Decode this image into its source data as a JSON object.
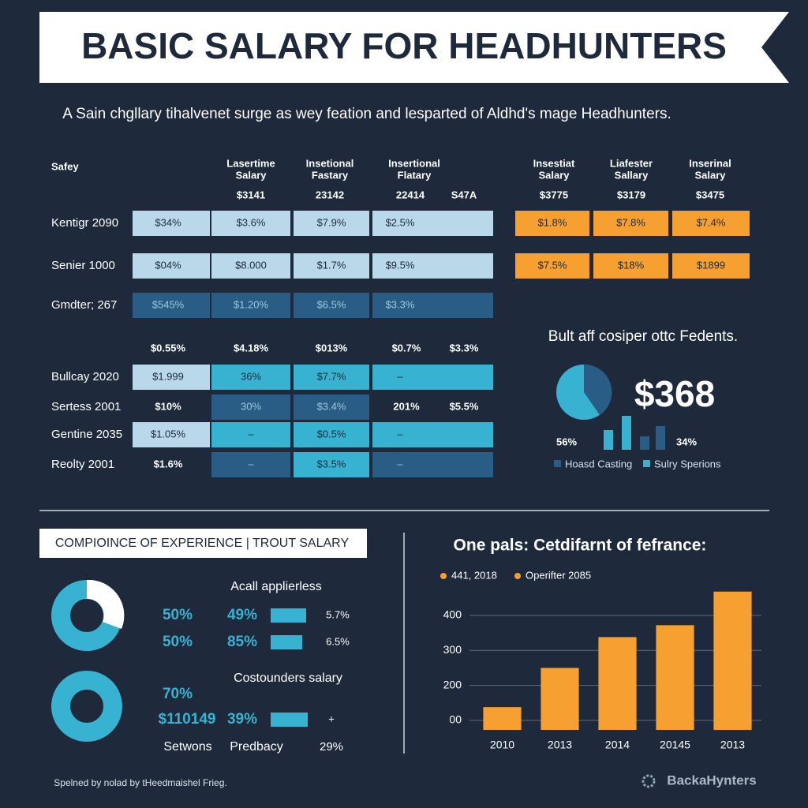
{
  "header": {
    "title": "BASIC SALARY FOR HEADHUNTERS",
    "subtitle": "A Sain chgllary tihalvenet surge as wey feation and lesparted of Aldhd's mage Headhunters."
  },
  "table": {
    "corner": "Safey",
    "columns": [
      [
        "Lasertime",
        "Salary"
      ],
      [
        "Insetional",
        "Fastary"
      ],
      [
        "Insertional",
        "Flatary"
      ]
    ],
    "subheader": [
      "$3141",
      "23142",
      "22414",
      "S47A"
    ],
    "right_columns": [
      [
        "Insestiat",
        "Salary"
      ],
      [
        "Liafester",
        "Sallary"
      ],
      [
        "Inserinal",
        "Salary"
      ]
    ],
    "right_subheader": [
      "$3775",
      "$3179",
      "$3475"
    ],
    "right_fill": "#f5a030",
    "mid_header": [
      "$0.55%",
      "$4.18%",
      "$013%",
      "$0.7%",
      "$3.3%"
    ],
    "rows": [
      {
        "label": "Kentigr 2090",
        "cells": [
          "$34%",
          "$3.6%",
          "$7.9%",
          "$2.5%"
        ],
        "fills": [
          "#b9d9ea",
          "#b9d9ea",
          "#b9d9ea",
          "#b9d9ea"
        ],
        "right_cells": [
          "$1.8%",
          "$7.8%",
          "$7.4%"
        ]
      },
      {
        "label": "Senier 1000",
        "cells": [
          "$04%",
          "$8.000",
          "$1.7%",
          "$9.5%"
        ],
        "fills": [
          "#b9d9ea",
          "#b9d9ea",
          "#b9d9ea",
          "#b9d9ea"
        ],
        "right_cells": [
          "$7.5%",
          "$18%",
          "$1899"
        ]
      },
      {
        "label": "Gmdter; 267",
        "cells": [
          "$545%",
          "$1.20%",
          "$6.5%",
          "$3.3%"
        ],
        "fills": [
          "#2a5d85",
          "#2a5d85",
          "#2a5d85",
          "#2a5d85"
        ]
      },
      {
        "label": "Bullcay 2020",
        "cells": [
          "$1.999",
          "36%",
          "$7.7%",
          "–"
        ],
        "fills": [
          "#b9d9ea",
          "#38b2d1",
          "#38b2d1",
          "#38b2d1"
        ]
      },
      {
        "label": "Sertess 2001",
        "cells": [
          "$10%",
          "30%",
          "$3.4%",
          "201%",
          "$5.5%"
        ],
        "fills": [
          null,
          "#2a5d85",
          "#2a5d85",
          null,
          null
        ]
      },
      {
        "label": "Gentine 2035",
        "cells": [
          "$1.05%",
          "–",
          "$0.5%",
          "–"
        ],
        "fills": [
          "#b9d9ea",
          "#38b2d1",
          "#38b2d1",
          "#38b2d1"
        ]
      },
      {
        "label": "Reolty 2001",
        "cells": [
          "$1.6%",
          "–",
          "$3.5%",
          "–"
        ],
        "fills": [
          null,
          "#2a5d85",
          "#38b2d1",
          "#2a5d85"
        ]
      }
    ]
  },
  "panel": {
    "title": "Bult aff cosiper ottc Fedents.",
    "big_value": "$368",
    "left_pct": "56%",
    "right_pct": "34%",
    "legend": [
      "Hoasd Casting",
      "Sulry Sperions"
    ]
  },
  "experience": {
    "title": "COMPIOINCE OF EXPERIENCE | TROUT SALARY",
    "heading1": "Acall applierless",
    "row1": [
      "50%",
      "49%",
      "5.7%"
    ],
    "row2": [
      "50%",
      "85%",
      "6.5%"
    ],
    "heading2": "Costounders salary",
    "pct": "70%",
    "row3": [
      "$110149",
      "39%",
      "+"
    ],
    "row4": [
      "Setwons",
      "Predbacy",
      "29%"
    ]
  },
  "chart_data": {
    "type": "bar",
    "title": "One pals: Cetdifarnt of fefrance:",
    "legend": [
      "441, 2018",
      "Operifter 2085"
    ],
    "categories": [
      "2010",
      "2013",
      "2014",
      "20145",
      "2013"
    ],
    "values": [
      138,
      250,
      338,
      372,
      468
    ],
    "color": "#f5a030",
    "ylim": [
      73,
      490
    ],
    "yticks": [
      {
        "value": 100,
        "label": "00"
      },
      200,
      300,
      400
    ],
    "grid": true
  },
  "footer": {
    "note": "Spelned by nolad by tHeedmaishel Frieg.",
    "brand": "BackaHynters"
  }
}
